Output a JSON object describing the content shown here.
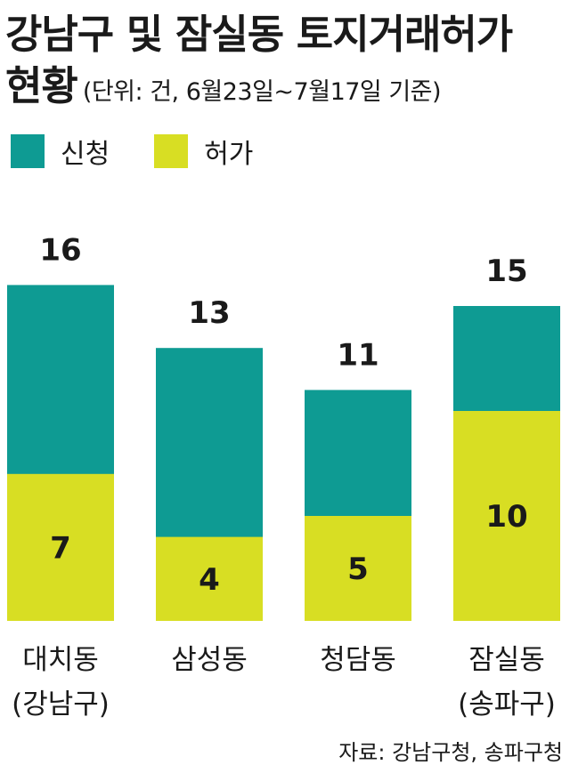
{
  "header": {
    "title_line1": "강남구 및 잠실동 토지거래허가",
    "title_line2": "현황",
    "subtitle": "(단위: 건, 6월23일~7월17일 기준)"
  },
  "legend": [
    {
      "label": "신청",
      "color": "#0e9b93"
    },
    {
      "label": "허가",
      "color": "#d8de23"
    }
  ],
  "source": "자료: 강남구청, 송파구청",
  "chart_data": {
    "type": "bar",
    "stacked": true,
    "title": "강남구 및 잠실동 토지거래허가 현황",
    "unit": "건",
    "categories": [
      {
        "line1": "대치동",
        "line2": "(강남구)"
      },
      {
        "line1": "삼성동",
        "line2": ""
      },
      {
        "line1": "청담동",
        "line2": ""
      },
      {
        "line1": "잠실동",
        "line2": "(송파구)"
      }
    ],
    "series": [
      {
        "name": "신청",
        "values": [
          16,
          13,
          11,
          15
        ],
        "color": "#0e9b93"
      },
      {
        "name": "허가",
        "values": [
          7,
          4,
          5,
          10
        ],
        "color": "#d8de23"
      }
    ],
    "grid": false,
    "legend_position": "top-left"
  }
}
